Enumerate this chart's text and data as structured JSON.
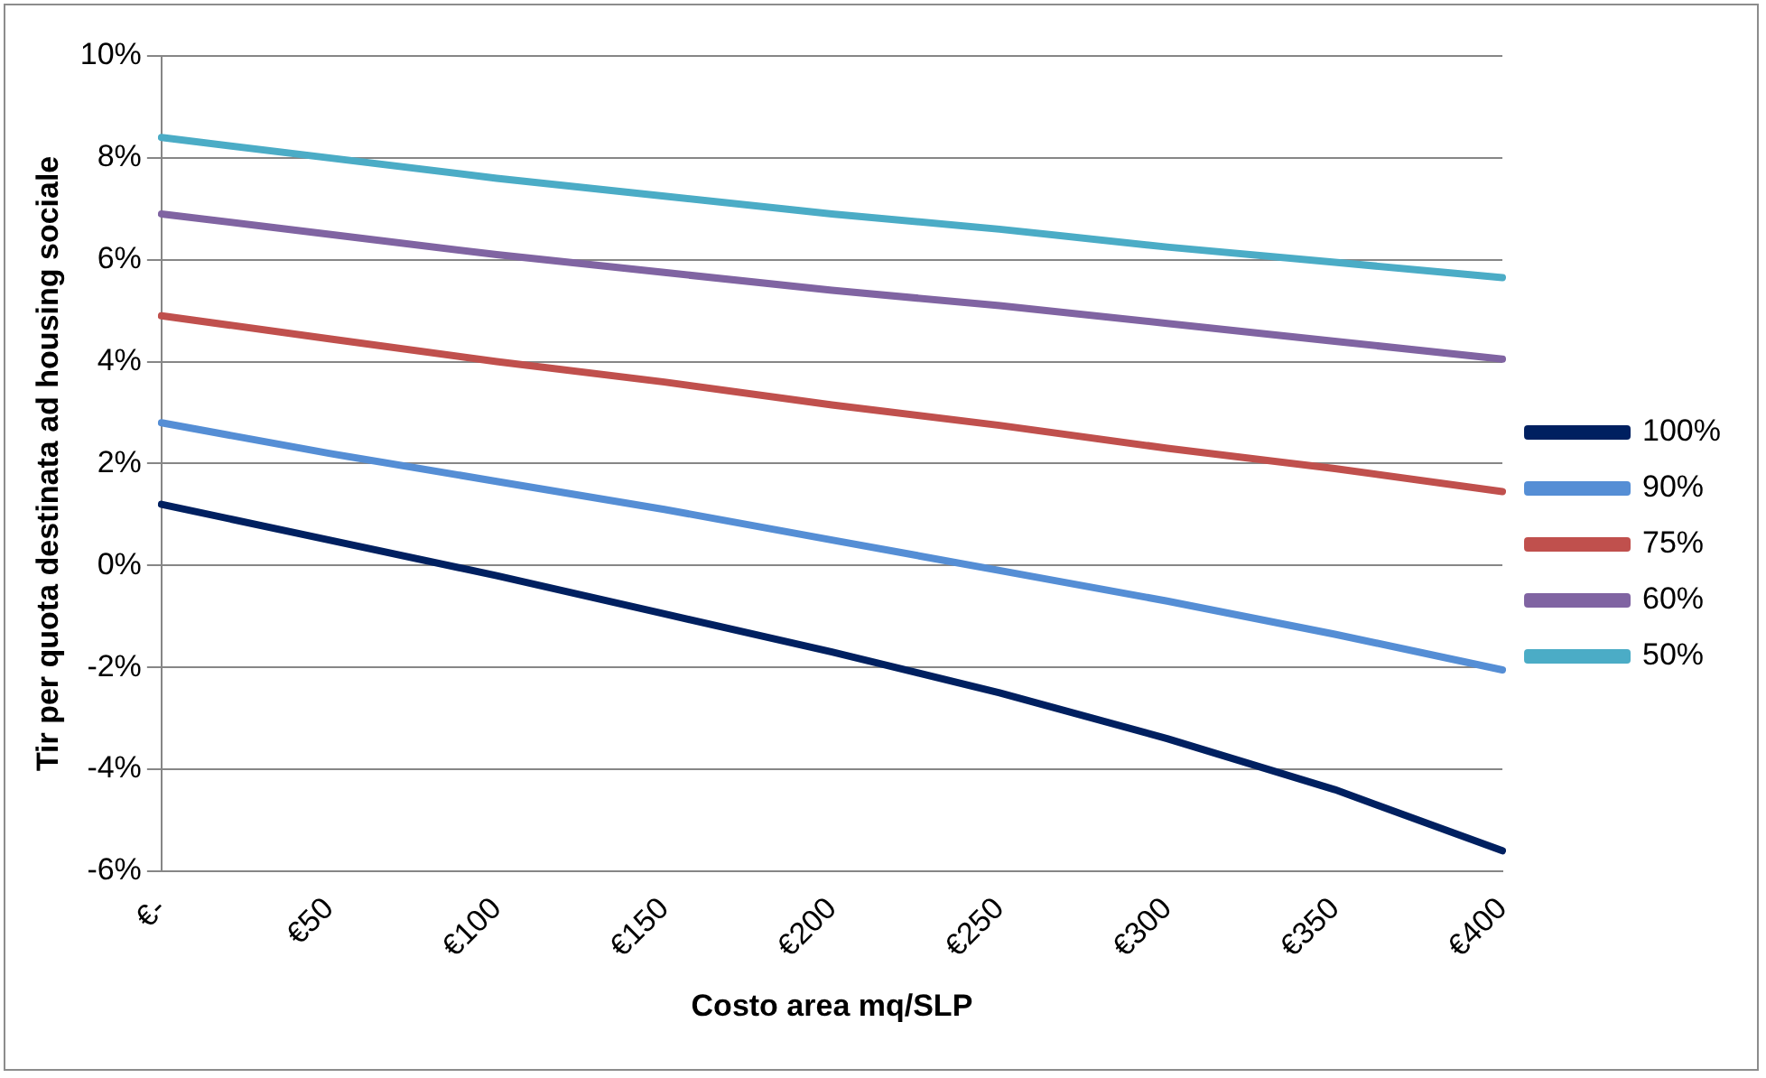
{
  "chart_data": {
    "type": "line",
    "xlabel": "Costo area mq/SLP",
    "ylabel": "Tir per quota destinata ad housing sociale",
    "categories": [
      "€-",
      "€50",
      "€100",
      "€150",
      "€200",
      "€250",
      "€300",
      "€350",
      "€400"
    ],
    "series": [
      {
        "name": "100%",
        "color": "#002060",
        "values": [
          1.2,
          0.5,
          -0.2,
          -0.95,
          -1.7,
          -2.5,
          -3.4,
          -4.4,
          -5.6
        ]
      },
      {
        "name": "90%",
        "color": "#558ed5",
        "values": [
          2.8,
          2.2,
          1.65,
          1.1,
          0.5,
          -0.1,
          -0.7,
          -1.35,
          -2.05
        ]
      },
      {
        "name": "75%",
        "color": "#c0504d",
        "values": [
          4.9,
          4.45,
          4.0,
          3.6,
          3.15,
          2.75,
          2.3,
          1.9,
          1.45
        ]
      },
      {
        "name": "60%",
        "color": "#8064a2",
        "values": [
          6.9,
          6.5,
          6.1,
          5.75,
          5.4,
          5.1,
          4.75,
          4.4,
          4.05
        ]
      },
      {
        "name": "50%",
        "color": "#4bacc6",
        "values": [
          8.4,
          8.0,
          7.6,
          7.25,
          6.9,
          6.6,
          6.25,
          5.95,
          5.65
        ]
      }
    ],
    "ylim": [
      -6,
      10
    ],
    "yticks": [
      {
        "value": -6,
        "label": "-6%"
      },
      {
        "value": -4,
        "label": "-4%"
      },
      {
        "value": -2,
        "label": "-2%"
      },
      {
        "value": 0,
        "label": "0%"
      },
      {
        "value": 2,
        "label": "2%"
      },
      {
        "value": 4,
        "label": "4%"
      },
      {
        "value": 6,
        "label": "6%"
      },
      {
        "value": 8,
        "label": "8%"
      },
      {
        "value": 10,
        "label": "10%"
      }
    ],
    "grid": "y",
    "legend": "right",
    "marker": "none",
    "line_style": "solid"
  }
}
